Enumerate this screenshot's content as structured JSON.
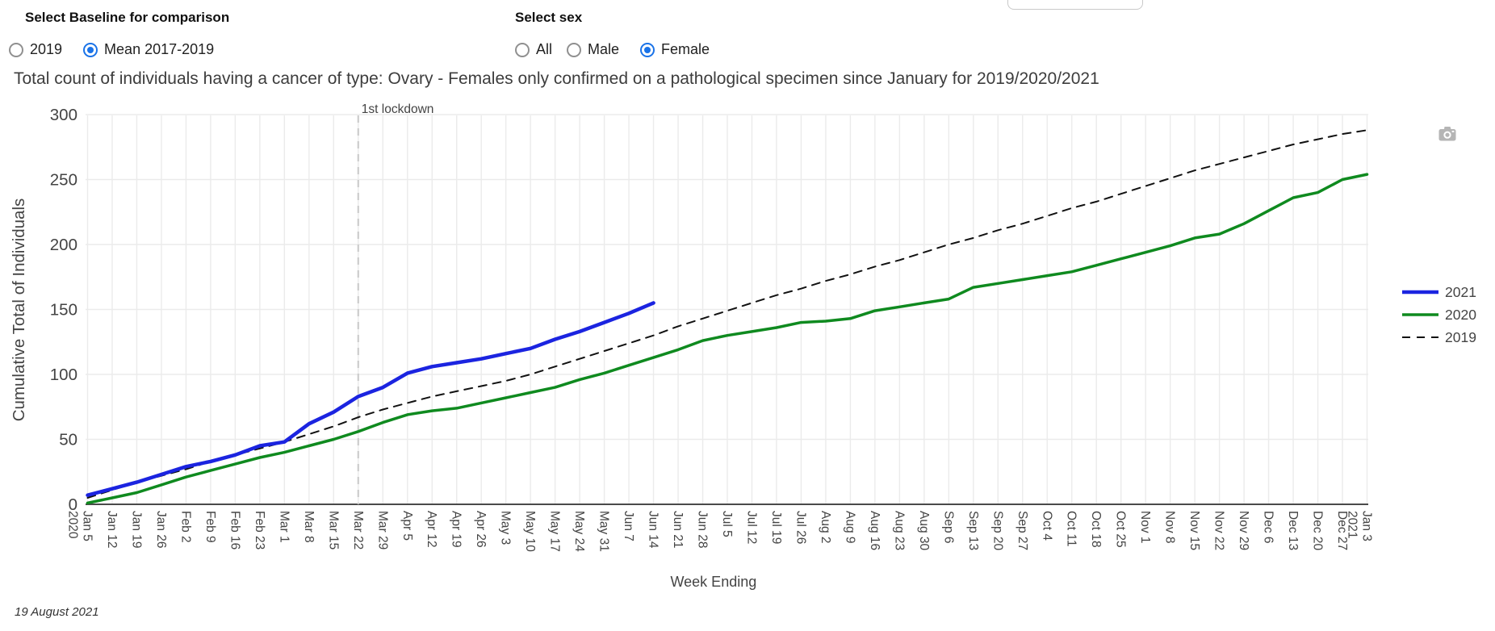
{
  "controls": {
    "baseline": {
      "label": "Select Baseline for comparison",
      "options": [
        {
          "label": "2019",
          "selected": false
        },
        {
          "label": "Mean 2017-2019",
          "selected": true
        }
      ]
    },
    "sex": {
      "label": "Select sex",
      "options": [
        {
          "label": "All",
          "selected": false
        },
        {
          "label": "Male",
          "selected": false
        },
        {
          "label": "Female",
          "selected": true
        }
      ]
    }
  },
  "title": "Total count of individuals having a cancer of type: Ovary - Females only confirmed on a pathological specimen since January for 2019/2020/2021",
  "footer": "19 August 2021",
  "toolbar": {
    "camera_icon": "download-plot-camera",
    "camera_color": "#b5b5b5"
  },
  "chart_data": {
    "type": "line",
    "xlabel": "Week Ending",
    "ylabel": "Cumulative Total of Individuals",
    "ylim": [
      0,
      300
    ],
    "yticks": [
      0,
      50,
      100,
      150,
      200,
      250,
      300
    ],
    "grid": true,
    "legend_position": "right",
    "categories": [
      "Jan 5",
      "Jan 12",
      "Jan 19",
      "Jan 26",
      "Feb 2",
      "Feb 9",
      "Feb 16",
      "Feb 23",
      "Mar 1",
      "Mar 8",
      "Mar 15",
      "Mar 22",
      "Mar 29",
      "Apr 5",
      "Apr 12",
      "Apr 19",
      "Apr 26",
      "May 3",
      "May 10",
      "May 17",
      "May 24",
      "May 31",
      "Jun 7",
      "Jun 14",
      "Jun 21",
      "Jun 28",
      "Jul 5",
      "Jul 12",
      "Jul 19",
      "Jul 26",
      "Aug 2",
      "Aug 9",
      "Aug 16",
      "Aug 23",
      "Aug 30",
      "Sep 6",
      "Sep 13",
      "Sep 20",
      "Sep 27",
      "Oct 4",
      "Oct 11",
      "Oct 18",
      "Oct 25",
      "Nov 1",
      "Nov 8",
      "Nov 15",
      "Nov 22",
      "Nov 29",
      "Dec 6",
      "Dec 13",
      "Dec 20",
      "Dec 27",
      "Jan 3"
    ],
    "first_tick_year": "2020",
    "last_tick_year": "2021",
    "annotation": {
      "label": "1st lockdown",
      "x_index": 11,
      "line_color": "#cccccc"
    },
    "series": [
      {
        "name": "2019",
        "color": "#111111",
        "dash": "dashed",
        "width": 2,
        "values": [
          5,
          11,
          17,
          22,
          27,
          33,
          38,
          43,
          48,
          54,
          60,
          67,
          73,
          78,
          83,
          87,
          91,
          95,
          100,
          106,
          112,
          118,
          124,
          130,
          137,
          143,
          149,
          155,
          161,
          166,
          172,
          177,
          183,
          188,
          194,
          200,
          205,
          211,
          216,
          222,
          228,
          233,
          239,
          245,
          251,
          257,
          262,
          267,
          272,
          277,
          281,
          285,
          288
        ]
      },
      {
        "name": "2020",
        "color": "#0f8a1f",
        "dash": "solid",
        "width": 3.5,
        "values": [
          1,
          5,
          9,
          15,
          21,
          26,
          31,
          36,
          40,
          45,
          50,
          56,
          63,
          69,
          72,
          74,
          78,
          82,
          86,
          90,
          96,
          101,
          107,
          113,
          119,
          126,
          130,
          133,
          136,
          140,
          141,
          143,
          149,
          152,
          155,
          158,
          167,
          170,
          173,
          176,
          179,
          184,
          189,
          194,
          199,
          205,
          208,
          216,
          226,
          236,
          240,
          250,
          254
        ]
      },
      {
        "name": "2021",
        "color": "#1b24e0",
        "dash": "solid",
        "width": 4.5,
        "values": [
          7,
          12,
          17,
          23,
          29,
          33,
          38,
          45,
          48,
          62,
          71,
          83,
          90,
          101,
          106,
          109,
          112,
          116,
          120,
          127,
          133,
          140,
          147,
          155,
          null,
          null,
          null,
          null,
          null,
          null,
          null,
          null,
          null,
          null,
          null,
          null,
          null,
          null,
          null,
          null,
          null,
          null,
          null,
          null,
          null,
          null,
          null,
          null,
          null,
          null,
          null,
          null,
          null
        ]
      }
    ],
    "legend_order": [
      "2021",
      "2020",
      "2019"
    ]
  }
}
